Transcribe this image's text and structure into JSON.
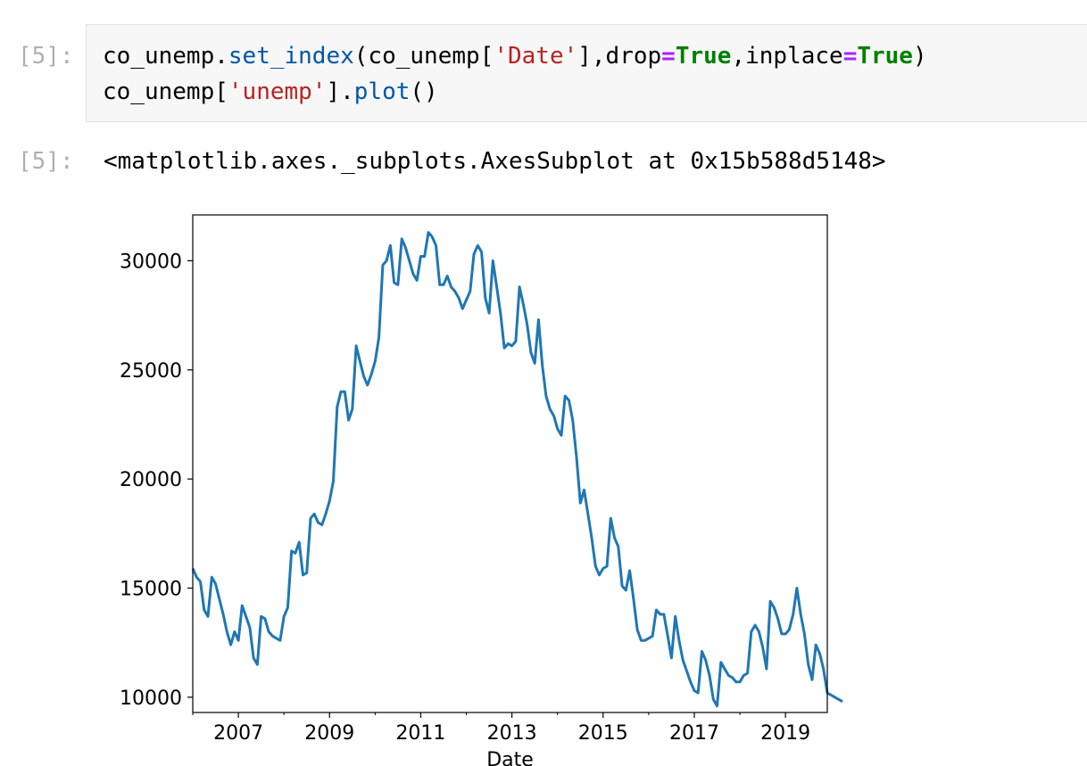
{
  "input_prompt": "[5]:",
  "output_prompt": "[5]:",
  "code": {
    "line1": [
      {
        "t": "co_unemp.",
        "c": "plain"
      },
      {
        "t": "set_index",
        "c": "fn"
      },
      {
        "t": "(co_unemp[",
        "c": "plain"
      },
      {
        "t": "'Date'",
        "c": "str"
      },
      {
        "t": "],drop",
        "c": "plain"
      },
      {
        "t": "=",
        "c": "op"
      },
      {
        "t": "True",
        "c": "kw"
      },
      {
        "t": ",inplace",
        "c": "plain"
      },
      {
        "t": "=",
        "c": "op"
      },
      {
        "t": "True",
        "c": "kw"
      },
      {
        "t": ")",
        "c": "plain"
      }
    ],
    "line2": [
      {
        "t": "co_unemp[",
        "c": "plain"
      },
      {
        "t": "'unemp'",
        "c": "str"
      },
      {
        "t": "].",
        "c": "plain"
      },
      {
        "t": "plot",
        "c": "fn"
      },
      {
        "t": "()",
        "c": "plain"
      }
    ]
  },
  "output_text": "<matplotlib.axes._subplots.AxesSubplot at 0x15b588d5148>",
  "chart_data": {
    "type": "line",
    "xlabel": "Date",
    "ylabel": "",
    "title": "",
    "xlim": [
      2006.0,
      2019.917
    ],
    "ylim": [
      9300,
      32100
    ],
    "x_ticks": [
      2007,
      2009,
      2011,
      2013,
      2015,
      2017,
      2019
    ],
    "y_ticks": [
      10000,
      15000,
      20000,
      25000,
      30000
    ],
    "line_color": "#1f77b4",
    "grid": false,
    "series": [
      {
        "x_start_year": 2006,
        "x_step_months": 1,
        "values": [
          15900,
          15500,
          15300,
          14000,
          13700,
          15500,
          15200,
          14500,
          13800,
          13000,
          12400,
          13000,
          12600,
          14200,
          13700,
          13200,
          11800,
          11500,
          13700,
          13600,
          13000,
          12800,
          12700,
          12600,
          13700,
          14100,
          16700,
          16600,
          17100,
          15600,
          15700,
          18200,
          18400,
          18000,
          17900,
          18400,
          19000,
          19900,
          23300,
          24000,
          24000,
          22700,
          23200,
          26100,
          25400,
          24700,
          24300,
          24800,
          25400,
          26500,
          29800,
          30000,
          30700,
          29000,
          28900,
          31000,
          30600,
          30000,
          29400,
          29100,
          30200,
          30200,
          31300,
          31100,
          30700,
          28900,
          28900,
          29300,
          28800,
          28600,
          28300,
          27800,
          28200,
          28600,
          30300,
          30700,
          30400,
          28300,
          27600,
          30000,
          28800,
          27600,
          26000,
          26200,
          26100,
          26300,
          28800,
          28000,
          27100,
          25800,
          25300,
          27300,
          25200,
          23800,
          23200,
          22900,
          22300,
          22000,
          23800,
          23600,
          22700,
          21000,
          18900,
          19500,
          18400,
          17300,
          16000,
          15600,
          15900,
          16000,
          18200,
          17300,
          16900,
          15100,
          14900,
          15800,
          14500,
          13100,
          12600,
          12600,
          12700,
          12800,
          14000,
          13800,
          13800,
          12800,
          11800,
          13700,
          12600,
          11700,
          11200,
          10700,
          10300,
          10200,
          12100,
          11700,
          11000,
          9900,
          9600,
          11600,
          11300,
          11000,
          10900,
          10700,
          10700,
          11000,
          11100,
          13000,
          13300,
          13000,
          12300,
          11300,
          14400,
          14100,
          13600,
          12900,
          12900,
          13100,
          13800,
          15000,
          13800,
          12900,
          11500,
          10800,
          12400,
          12000,
          11300,
          10200,
          10100,
          10000,
          9900,
          9800
        ]
      }
    ]
  }
}
